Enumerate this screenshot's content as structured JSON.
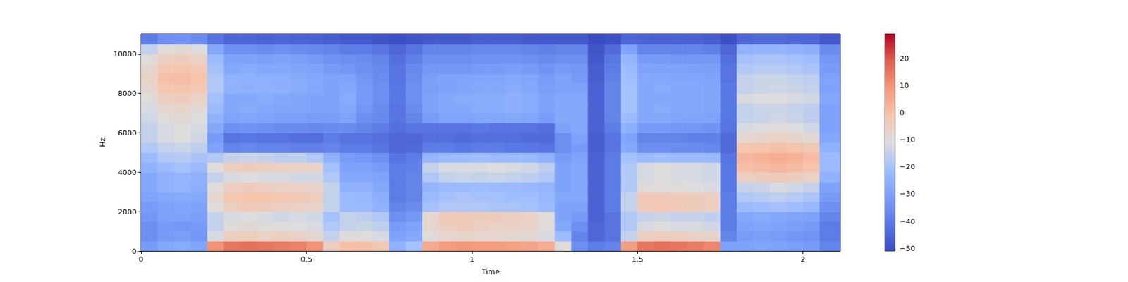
{
  "chart_data": {
    "type": "heatmap",
    "x_label": "Time",
    "y_label": "Hz",
    "color": "coolwarm",
    "grid": false,
    "xlim": [
      0,
      2.113
    ],
    "ylim": [
      0,
      11025
    ],
    "xticks": [
      0,
      0.5,
      1,
      1.5,
      2
    ],
    "yticks": [
      0,
      2000,
      4000,
      6000,
      8000,
      10000
    ],
    "time_edges": [
      0,
      0.05,
      0.1,
      0.15,
      0.2,
      0.25,
      0.3,
      0.35,
      0.4,
      0.45,
      0.5,
      0.55,
      0.6,
      0.65,
      0.7,
      0.75,
      0.8,
      0.85,
      0.9,
      0.95,
      1.0,
      1.05,
      1.1,
      1.15,
      1.2,
      1.25,
      1.3,
      1.35,
      1.4,
      1.45,
      1.5,
      1.55,
      1.6,
      1.65,
      1.7,
      1.75,
      1.8,
      1.85,
      1.9,
      1.95,
      2.0,
      2.05,
      2.113
    ],
    "freq_edges": [
      0,
      500,
      1000,
      1500,
      2000,
      2500,
      3000,
      3500,
      4000,
      4500,
      5000,
      5500,
      6000,
      6500,
      7000,
      7500,
      8000,
      8500,
      9000,
      9500,
      10000,
      10500,
      11025
    ],
    "cells": [
      [
        -32,
        -35,
        -35,
        -33,
        -32,
        -30,
        -28,
        -28,
        -25,
        -22,
        -18,
        -15,
        -15,
        -13,
        -12,
        -10,
        -8,
        -6,
        -8,
        -10,
        -15,
        -40
      ],
      [
        -28,
        -32,
        -32,
        -30,
        -30,
        -28,
        -25,
        -25,
        -22,
        -18,
        -15,
        -12,
        -12,
        -10,
        -8,
        -5,
        -2,
        0,
        -2,
        -5,
        -10,
        -35
      ],
      [
        -27,
        -31,
        -33,
        -30,
        -29,
        -27,
        -24,
        -24,
        -20,
        -17,
        -14,
        -11,
        -11,
        -9,
        -7,
        -4,
        -1,
        1,
        -1,
        -4,
        -9,
        -34
      ],
      [
        -29,
        -33,
        -32,
        -31,
        -30,
        -28,
        -26,
        -25,
        -22,
        -19,
        -16,
        -13,
        -12,
        -11,
        -9,
        -6,
        -3,
        -1,
        -3,
        -6,
        -11,
        -36
      ],
      [
        10,
        -12,
        -15,
        -15,
        -10,
        -8,
        -10,
        -15,
        -10,
        -18,
        -30,
        -32,
        -28,
        -25,
        -22,
        -20,
        -18,
        -18,
        -20,
        -22,
        -28,
        -42
      ],
      [
        15,
        -5,
        -10,
        -12,
        -5,
        -2,
        -5,
        -12,
        -5,
        -15,
        -38,
        -42,
        -35,
        -30,
        -28,
        -28,
        -25,
        -25,
        -28,
        -30,
        -35,
        -45
      ],
      [
        16,
        -4,
        -9,
        -11,
        -3,
        -1,
        -4,
        -11,
        -4,
        -14,
        -37,
        -41,
        -34,
        -29,
        -27,
        -28,
        -26,
        -25,
        -27,
        -30,
        -35,
        -45
      ],
      [
        15,
        -6,
        -10,
        -12,
        -4,
        -1,
        -5,
        -12,
        -5,
        -15,
        -38,
        -42,
        -35,
        -30,
        -28,
        -27,
        -25,
        -26,
        -28,
        -31,
        -36,
        -46
      ],
      [
        14,
        -5,
        -11,
        -13,
        -5,
        -2,
        -6,
        -12,
        -6,
        -16,
        -38,
        -42,
        -36,
        -31,
        -29,
        -28,
        -26,
        -26,
        -28,
        -30,
        -35,
        -45
      ],
      [
        13,
        -6,
        -11,
        -12,
        -6,
        -3,
        -6,
        -13,
        -6,
        -16,
        -39,
        -43,
        -36,
        -31,
        -29,
        -29,
        -27,
        -27,
        -29,
        -31,
        -36,
        -46
      ],
      [
        10,
        -8,
        -12,
        -13,
        -7,
        -4,
        -7,
        -13,
        -7,
        -18,
        -39,
        -43,
        -37,
        -32,
        -30,
        -30,
        -28,
        -28,
        -30,
        -32,
        -37,
        -46
      ],
      [
        -5,
        -15,
        -18,
        -20,
        -15,
        -15,
        -15,
        -18,
        -20,
        -25,
        -38,
        -40,
        -36,
        -32,
        -30,
        -30,
        -30,
        -30,
        -32,
        -34,
        -38,
        -47
      ],
      [
        0,
        -10,
        -15,
        -15,
        -22,
        -22,
        -25,
        -28,
        -30,
        -32,
        -40,
        -42,
        -36,
        -30,
        -28,
        -27,
        -28,
        -30,
        -33,
        -35,
        -40,
        -48
      ],
      [
        0,
        -10,
        -14,
        -16,
        -22,
        -23,
        -25,
        -28,
        -30,
        -33,
        -40,
        -42,
        -38,
        -35,
        -33,
        -32,
        -32,
        -33,
        -35,
        -36,
        -40,
        -48
      ],
      [
        -3,
        -12,
        -16,
        -18,
        -25,
        -26,
        -28,
        -30,
        -32,
        -35,
        -42,
        -43,
        -40,
        -37,
        -36,
        -35,
        -35,
        -36,
        -37,
        -38,
        -42,
        -49
      ],
      [
        -25,
        -30,
        -32,
        -35,
        -38,
        -40,
        -40,
        -40,
        -40,
        -42,
        -45,
        -45,
        -43,
        -42,
        -42,
        -41,
        -41,
        -42,
        -42,
        -43,
        -45,
        -50
      ],
      [
        -20,
        -28,
        -30,
        -33,
        -36,
        -38,
        -38,
        -38,
        -39,
        -40,
        -44,
        -45,
        -42,
        -38,
        -36,
        -35,
        -35,
        -36,
        -37,
        -39,
        -42,
        -49
      ],
      [
        5,
        -10,
        -8,
        -8,
        -20,
        -22,
        -24,
        -18,
        -15,
        -24,
        -40,
        -43,
        -42,
        -32,
        -30,
        -30,
        -31,
        -31,
        -33,
        -35,
        -38,
        -48
      ],
      [
        8,
        -8,
        -5,
        -3,
        -18,
        -20,
        -22,
        -15,
        -12,
        -22,
        -40,
        -43,
        -42,
        -30,
        -28,
        -28,
        -30,
        -30,
        -33,
        -35,
        -38,
        -48
      ],
      [
        9,
        -7,
        -4,
        -3,
        -18,
        -19,
        -22,
        -14,
        -12,
        -22,
        -41,
        -44,
        -42,
        -30,
        -28,
        -27,
        -29,
        -30,
        -33,
        -35,
        -38,
        -48
      ],
      [
        8,
        -8,
        -5,
        -4,
        -18,
        -20,
        -21,
        -15,
        -12,
        -21,
        -40,
        -43,
        -41,
        -29,
        -27,
        -27,
        -28,
        -29,
        -32,
        -34,
        -37,
        -47
      ],
      [
        8,
        -8,
        -6,
        -4,
        -19,
        -20,
        -22,
        -14,
        -11,
        -22,
        -40,
        -43,
        -42,
        -29,
        -27,
        -27,
        -28,
        -29,
        -32,
        -34,
        -37,
        -47
      ],
      [
        7,
        -9,
        -6,
        -5,
        -19,
        -21,
        -22,
        -15,
        -12,
        -22,
        -41,
        -43,
        -42,
        -28,
        -26,
        -26,
        -27,
        -28,
        -31,
        -34,
        -37,
        -47
      ],
      [
        6,
        -9,
        -7,
        -6,
        -20,
        -21,
        -23,
        -16,
        -13,
        -23,
        -41,
        -44,
        -42,
        -29,
        -27,
        -27,
        -28,
        -29,
        -32,
        -35,
        -38,
        -48
      ],
      [
        4,
        -12,
        -10,
        -10,
        -22,
        -23,
        -24,
        -18,
        -16,
        -25,
        -42,
        -44,
        -43,
        -32,
        -30,
        -30,
        -31,
        -32,
        -34,
        -36,
        -39,
        -48
      ],
      [
        -10,
        -22,
        -28,
        -30,
        -30,
        -28,
        -30,
        -30,
        -30,
        -32,
        -35,
        -35,
        -30,
        -28,
        -28,
        -28,
        -30,
        -30,
        -32,
        -35,
        -38,
        -48
      ],
      [
        -35,
        -38,
        -35,
        -32,
        -30,
        -28,
        -28,
        -28,
        -28,
        -30,
        -32,
        -30,
        -28,
        -28,
        -28,
        -28,
        -30,
        -32,
        -33,
        -35,
        -38,
        -48
      ],
      [
        -40,
        -45,
        -45,
        -46,
        -46,
        -46,
        -46,
        -46,
        -46,
        -46,
        -47,
        -47,
        -46,
        -46,
        -46,
        -46,
        -46,
        -47,
        -47,
        -48,
        -49,
        -51
      ],
      [
        -38,
        -42,
        -42,
        -42,
        -40,
        -40,
        -40,
        -40,
        -40,
        -40,
        -42,
        -42,
        -40,
        -38,
        -38,
        -38,
        -38,
        -39,
        -40,
        -41,
        -44,
        -50
      ],
      [
        8,
        -15,
        -18,
        -18,
        -15,
        -15,
        -18,
        -18,
        -18,
        -20,
        -28,
        -30,
        -26,
        -22,
        -20,
        -20,
        -20,
        -21,
        -22,
        -24,
        -30,
        -45
      ],
      [
        15,
        -5,
        -12,
        -15,
        -3,
        -3,
        -10,
        -12,
        -12,
        -22,
        -35,
        -38,
        -32,
        -28,
        -28,
        -28,
        -28,
        -28,
        -30,
        -32,
        -38,
        -46
      ],
      [
        16,
        -4,
        -11,
        -14,
        -2,
        -3,
        -10,
        -11,
        -11,
        -21,
        -35,
        -38,
        -32,
        -28,
        -27,
        -28,
        -27,
        -28,
        -30,
        -32,
        -38,
        -46
      ],
      [
        15,
        -5,
        -12,
        -15,
        -3,
        -4,
        -10,
        -12,
        -12,
        -22,
        -36,
        -38,
        -33,
        -29,
        -28,
        -28,
        -28,
        -29,
        -30,
        -33,
        -38,
        -46
      ],
      [
        14,
        -6,
        -12,
        -15,
        -4,
        -4,
        -11,
        -12,
        -12,
        -22,
        -36,
        -39,
        -33,
        -29,
        -28,
        -28,
        -28,
        -29,
        -31,
        -33,
        -38,
        -46
      ],
      [
        12,
        -7,
        -13,
        -16,
        -5,
        -5,
        -12,
        -13,
        -13,
        -23,
        -37,
        -39,
        -34,
        -30,
        -29,
        -29,
        -29,
        -30,
        -31,
        -33,
        -39,
        -47
      ],
      [
        -30,
        -38,
        -40,
        -40,
        -40,
        -40,
        -41,
        -41,
        -41,
        -42,
        -44,
        -44,
        -42,
        -41,
        -41,
        -41,
        -41,
        -42,
        -42,
        -43,
        -45,
        -50
      ],
      [
        -30,
        -32,
        -30,
        -28,
        -22,
        -18,
        -15,
        -5,
        0,
        2,
        -2,
        -8,
        -12,
        -15,
        -15,
        -12,
        -15,
        -15,
        -18,
        -20,
        -25,
        -45
      ],
      [
        -29,
        -31,
        -29,
        -27,
        -21,
        -17,
        -14,
        -4,
        1,
        3,
        -1,
        -7,
        -11,
        -14,
        -14,
        -11,
        -14,
        -14,
        -17,
        -19,
        -24,
        -44
      ],
      [
        -30,
        -32,
        -30,
        -28,
        -20,
        -16,
        -12,
        -3,
        2,
        4,
        0,
        -6,
        -10,
        -13,
        -14,
        -11,
        -13,
        -14,
        -17,
        -19,
        -24,
        -44
      ],
      [
        -31,
        -33,
        -31,
        -29,
        -21,
        -17,
        -13,
        -4,
        1,
        3,
        -1,
        -7,
        -11,
        -14,
        -15,
        -12,
        -14,
        -15,
        -18,
        -20,
        -25,
        -45
      ],
      [
        -32,
        -34,
        -32,
        -30,
        -23,
        -19,
        -15,
        -6,
        -1,
        1,
        -3,
        -9,
        -13,
        -16,
        -16,
        -13,
        -15,
        -16,
        -19,
        -21,
        -26,
        -45
      ],
      [
        -38,
        -40,
        -40,
        -38,
        -35,
        -32,
        -30,
        -25,
        -22,
        -22,
        -25,
        -28,
        -30,
        -30,
        -30,
        -28,
        -30,
        -30,
        -32,
        -33,
        -36,
        -48
      ]
    ],
    "colorbar": {
      "range": [
        -51,
        29
      ],
      "ticks": [
        {
          "value": -50,
          "label": "−50"
        },
        {
          "value": -40,
          "label": "−40"
        },
        {
          "value": -30,
          "label": "−30"
        },
        {
          "value": -20,
          "label": "−20"
        },
        {
          "value": -10,
          "label": "−10"
        },
        0,
        10,
        20
      ]
    }
  }
}
